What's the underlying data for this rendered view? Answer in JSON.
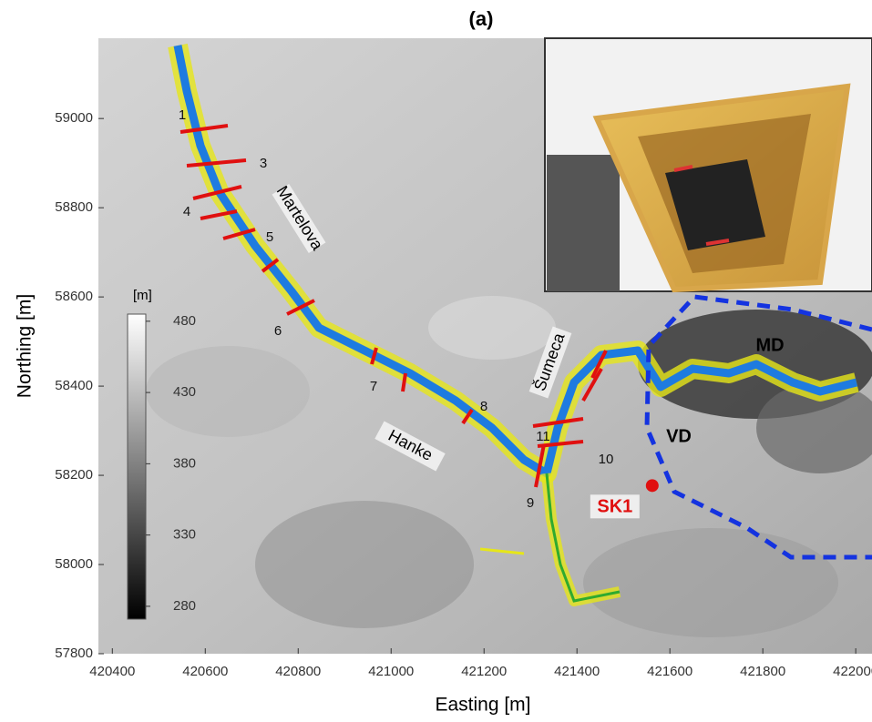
{
  "title": "(a)",
  "map": {
    "type": "map",
    "x_label": "Easting [m]",
    "y_label": "Northing [m]",
    "xlim": [
      420370,
      422035
    ],
    "ylim": [
      57800,
      59180
    ],
    "xticks": [
      420400,
      420600,
      420800,
      421000,
      421200,
      421400,
      421600,
      421800,
      422000
    ],
    "yticks": [
      57800,
      58000,
      58200,
      58400,
      58600,
      58800,
      59000
    ],
    "colorbar": {
      "label": "[m]",
      "lim": [
        271,
        485
      ],
      "ticks": [
        280,
        330,
        380,
        430,
        480
      ]
    },
    "cross_sections": [
      "1",
      "3",
      "4",
      "5",
      "6",
      "7",
      "8",
      "9",
      "10",
      "11"
    ],
    "places": [
      "Martelova",
      "Šumeca",
      "Hanke",
      "MD",
      "VD"
    ],
    "station": {
      "name": "SK1",
      "x": 421562,
      "y": 58177
    },
    "inset_label": "SK1"
  }
}
